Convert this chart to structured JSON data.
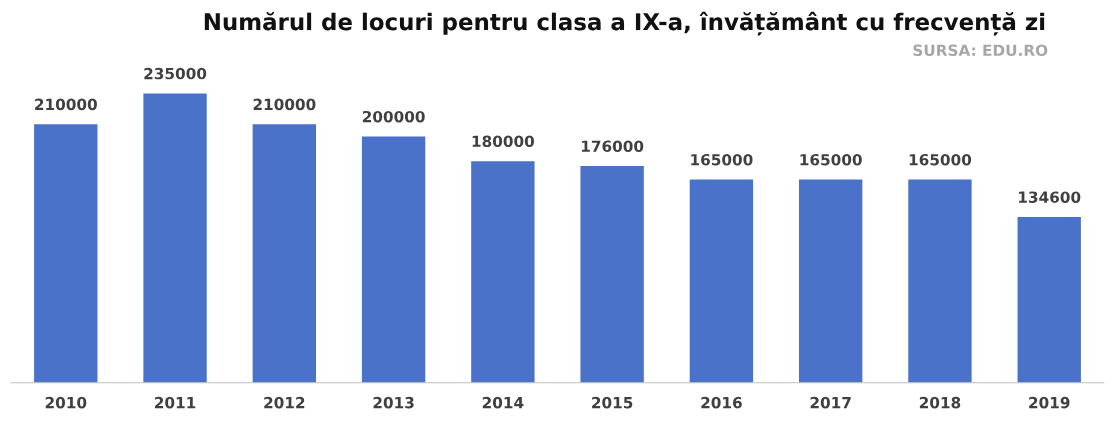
{
  "chart_data": {
    "type": "bar",
    "title": "Numărul de locuri pentru clasa a IX-a, învățământ cu frecvență zi",
    "annotations": [
      "SURSA: EDU.RO"
    ],
    "categories": [
      "2010",
      "2011",
      "2012",
      "2013",
      "2014",
      "2015",
      "2016",
      "2017",
      "2018",
      "2019"
    ],
    "values": [
      210000,
      235000,
      210000,
      200000,
      180000,
      176000,
      165000,
      165000,
      165000,
      134600
    ],
    "color": "#4a72c8",
    "data_labels": true
  }
}
